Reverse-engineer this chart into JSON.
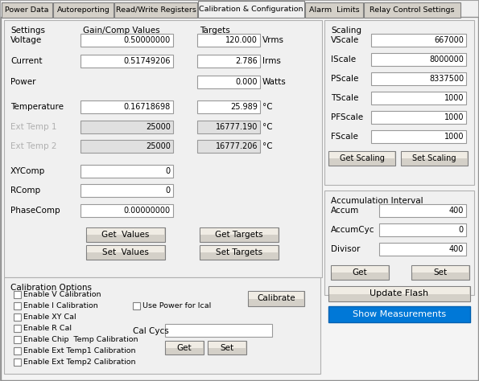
{
  "bg_color": "#f0f0f0",
  "text_color": "#000000",
  "grayed_color": "#b0b0b0",
  "input_bg": "#ffffff",
  "input_bg_gray": "#e0e0e0",
  "button_bg": "#e0ddd8",
  "highlight_bg": "#0078d7",
  "highlight_text": "#ffffff",
  "tabs": [
    "Power Data",
    "Autoreporting",
    "Read/Write Registers",
    "Calibration & Configuration",
    "Alarm  Limits",
    "Relay Control Settings"
  ],
  "active_tab": 3,
  "settings_labels": [
    "Voltage",
    "Current",
    "Power",
    "Temperature",
    "Ext Temp 1",
    "Ext Temp 2",
    "XYComp",
    "RComp",
    "PhaseComp"
  ],
  "gain_values": [
    "0.50000000",
    "0.51749206",
    "",
    "0.16718698",
    "25000",
    "25000",
    "0",
    "0",
    "0.00000000"
  ],
  "gain_has_box": [
    true,
    true,
    false,
    true,
    true,
    true,
    true,
    true,
    true
  ],
  "target_values": [
    "120.000",
    "2.786",
    "0.000",
    "25.989",
    "16777.190",
    "16777.206"
  ],
  "target_units": [
    "Vrms",
    "Irms",
    "Watts",
    "°C",
    "°C",
    "°C"
  ],
  "target_gray": [
    false,
    false,
    false,
    false,
    true,
    true
  ],
  "scaling_labels": [
    "VScale",
    "IScale",
    "PScale",
    "TScale",
    "PFScale",
    "FScale"
  ],
  "scaling_values": [
    "667000",
    "8000000",
    "8337500",
    "1000",
    "1000",
    "1000"
  ],
  "accum_labels": [
    "Accum",
    "AccumCyc",
    "Divisor"
  ],
  "accum_values": [
    "400",
    "0",
    "400"
  ],
  "cal_options": [
    "Enable V Calibration",
    "Enable I Calibration",
    "Enable XY Cal",
    "Enable R Cal",
    "Enable Chip  Temp Calibration",
    "Enable Ext Temp1 Calibration",
    "Enable Ext Temp2 Calibration"
  ],
  "use_power_label": "Use Power for Ical",
  "cal_cycs_label": "Cal Cycs"
}
